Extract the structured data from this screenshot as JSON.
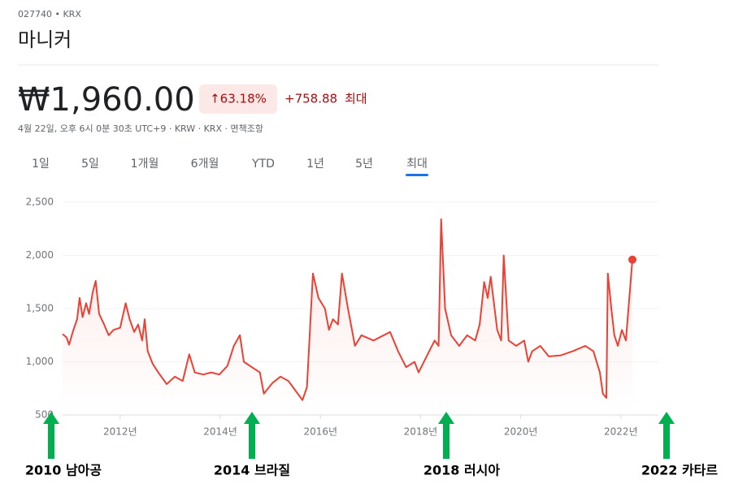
{
  "header": {
    "ticker": "027740 • KRX",
    "name": "마니커",
    "price": "₩1,960.00",
    "change_pct": "↑63.18%",
    "change": "+758.88",
    "period": "최대",
    "timestamp": "4월 22일, 오후 6시 0분 30초 UTC+9 · KRW · KRX · 면책조항",
    "tabs": [
      "1일",
      "5일",
      "1개월",
      "6개월",
      "YTD",
      "1년",
      "5년",
      "최대"
    ],
    "selected_tab": 7
  },
  "chart_data": {
    "type": "line",
    "x": [
      2010.85,
      2010.93,
      2010.98,
      2011.06,
      2011.14,
      2011.19,
      2011.25,
      2011.32,
      2011.38,
      2011.45,
      2011.51,
      2011.58,
      2011.68,
      2011.77,
      2011.87,
      2012.0,
      2012.11,
      2012.19,
      2012.28,
      2012.36,
      2012.44,
      2012.49,
      2012.55,
      2012.65,
      2012.76,
      2012.93,
      2013.09,
      2013.25,
      2013.38,
      2013.49,
      2013.66,
      2013.82,
      2013.98,
      2014.14,
      2014.27,
      2014.39,
      2014.47,
      2014.63,
      2014.79,
      2014.87,
      2015.04,
      2015.2,
      2015.36,
      2015.64,
      2015.73,
      2015.85,
      2015.96,
      2016.09,
      2016.17,
      2016.25,
      2016.35,
      2016.43,
      2016.55,
      2016.69,
      2016.82,
      2017.06,
      2017.39,
      2017.55,
      2017.71,
      2017.88,
      2017.96,
      2018.12,
      2018.28,
      2018.36,
      2018.41,
      2018.49,
      2018.61,
      2018.77,
      2018.93,
      2019.09,
      2019.18,
      2019.27,
      2019.34,
      2019.4,
      2019.53,
      2019.61,
      2019.66,
      2019.76,
      2019.91,
      2020.07,
      2020.15,
      2020.23,
      2020.39,
      2020.56,
      2020.8,
      2021.04,
      2021.29,
      2021.45,
      2021.58,
      2021.64,
      2021.71,
      2021.74,
      2021.81,
      2021.87,
      2021.94,
      2022.02,
      2022.1,
      2022.16,
      2022.23
    ],
    "series": [
      {
        "name": "마니커",
        "color": "#e94235",
        "values": [
          1260,
          1230,
          1160,
          1290,
          1400,
          1600,
          1420,
          1550,
          1450,
          1650,
          1760,
          1450,
          1350,
          1250,
          1300,
          1320,
          1550,
          1400,
          1280,
          1350,
          1200,
          1400,
          1100,
          980,
          900,
          790,
          860,
          820,
          1070,
          900,
          880,
          900,
          880,
          960,
          1150,
          1250,
          1000,
          950,
          900,
          700,
          800,
          860,
          820,
          640,
          760,
          1830,
          1600,
          1500,
          1300,
          1400,
          1350,
          1830,
          1500,
          1150,
          1250,
          1200,
          1280,
          1100,
          950,
          1000,
          900,
          1050,
          1200,
          1150,
          2340,
          1500,
          1250,
          1150,
          1250,
          1200,
          1350,
          1750,
          1600,
          1800,
          1300,
          1200,
          2000,
          1200,
          1150,
          1200,
          1000,
          1100,
          1150,
          1050,
          1060,
          1100,
          1150,
          1100,
          900,
          700,
          660,
          1830,
          1500,
          1250,
          1150,
          1300,
          1200,
          1550,
          1960
        ]
      }
    ],
    "xlim": [
      2010.85,
      2022.23
    ],
    "ylim": [
      500,
      2500
    ],
    "xticks": [
      {
        "value": 2012,
        "label": "2012년"
      },
      {
        "value": 2014,
        "label": "2014년"
      },
      {
        "value": 2016,
        "label": "2016년"
      },
      {
        "value": 2018,
        "label": "2018년"
      },
      {
        "value": 2020,
        "label": "2020년"
      },
      {
        "value": 2022,
        "label": "2022년"
      }
    ],
    "yticks": [
      500,
      {
        "value": 1000,
        "label": "1,000"
      },
      {
        "value": 1500,
        "label": "1,500"
      },
      {
        "value": 2000,
        "label": "2,000"
      },
      {
        "value": 2500,
        "label": "2,500"
      }
    ],
    "grid": true,
    "annotations": [
      "2010 남아공",
      "2014 브라질",
      "2018 러시아",
      "2022 카타르"
    ]
  }
}
